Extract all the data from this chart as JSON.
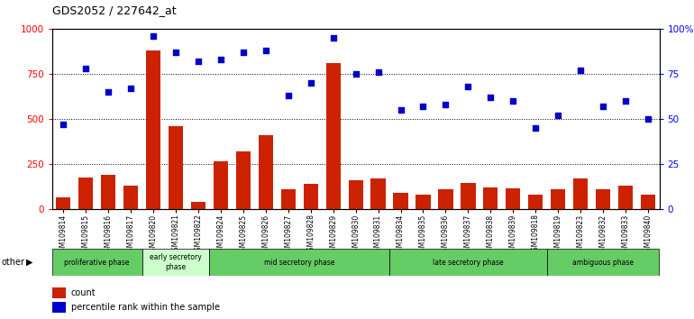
{
  "title": "GDS2052 / 227642_at",
  "samples": [
    "GSM109814",
    "GSM109815",
    "GSM109816",
    "GSM109817",
    "GSM109820",
    "GSM109821",
    "GSM109822",
    "GSM109824",
    "GSM109825",
    "GSM109826",
    "GSM109827",
    "GSM109828",
    "GSM109829",
    "GSM109830",
    "GSM109831",
    "GSM109834",
    "GSM109835",
    "GSM109836",
    "GSM109837",
    "GSM109838",
    "GSM109839",
    "GSM109818",
    "GSM109819",
    "GSM109823",
    "GSM109832",
    "GSM109833",
    "GSM109840"
  ],
  "counts": [
    65,
    175,
    190,
    130,
    880,
    460,
    40,
    265,
    320,
    410,
    110,
    140,
    810,
    160,
    170,
    90,
    80,
    110,
    145,
    120,
    115,
    80,
    110,
    170,
    110,
    130,
    80
  ],
  "percentiles": [
    47,
    78,
    65,
    67,
    96,
    87,
    82,
    83,
    87,
    88,
    63,
    70,
    95,
    75,
    76,
    55,
    57,
    58,
    68,
    62,
    60,
    45,
    52,
    77,
    57,
    60,
    50
  ],
  "phases": [
    {
      "label": "proliferative phase",
      "start": 0,
      "end": 4,
      "color": "#66cc66"
    },
    {
      "label": "early secretory\nphase",
      "start": 4,
      "end": 7,
      "color": "#ccffcc"
    },
    {
      "label": "mid secretory phase",
      "start": 7,
      "end": 15,
      "color": "#66cc66"
    },
    {
      "label": "late secretory phase",
      "start": 15,
      "end": 22,
      "color": "#66cc66"
    },
    {
      "label": "ambiguous phase",
      "start": 22,
      "end": 27,
      "color": "#66cc66"
    }
  ],
  "bar_color": "#cc2200",
  "dot_color": "#0000cc",
  "ylim_left": [
    0,
    1000
  ],
  "ylim_right": [
    0,
    100
  ],
  "yticks_left": [
    0,
    250,
    500,
    750,
    1000
  ],
  "yticks_right": [
    0,
    25,
    50,
    75,
    100
  ],
  "ylabel_right_labels": [
    "0",
    "25",
    "50",
    "75",
    "100%"
  ],
  "background_color": "#ffffff",
  "plot_bg_color": "#ffffff"
}
